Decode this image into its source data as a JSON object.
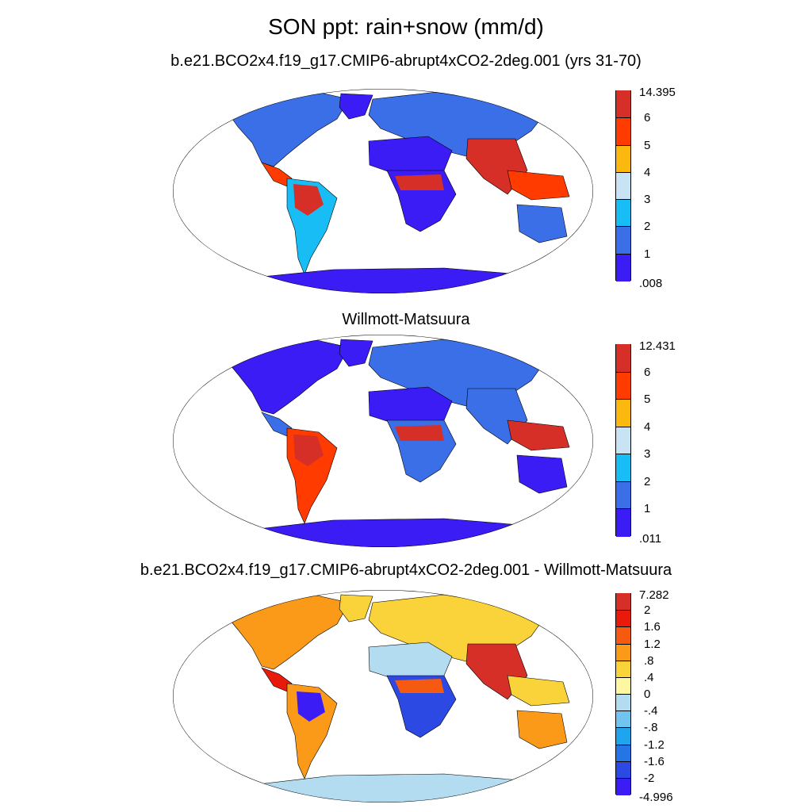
{
  "figure": {
    "title": "SON ppt: rain+snow (mm/d)"
  },
  "panels": [
    {
      "title": "b.e21.BCO2x4.f19_g17.CMIP6-abrupt4xCO2-2deg.001 (yrs 31-70)",
      "colorbar": {
        "labels": [
          "14.395",
          "6",
          "5",
          "4",
          "3",
          "2",
          "1",
          ".008"
        ],
        "colors": [
          "#d62f27",
          "#ff3b00",
          "#fbb90f",
          "#c8e4f4",
          "#18bdf5",
          "#3a6fe8",
          "#3b1cf5"
        ]
      }
    },
    {
      "title": "Willmott-Matsuura",
      "colorbar": {
        "labels": [
          "12.431",
          "6",
          "5",
          "4",
          "3",
          "2",
          "1",
          ".011"
        ],
        "colors": [
          "#d62f27",
          "#ff3b00",
          "#fbb90f",
          "#c8e4f4",
          "#18bdf5",
          "#3a6fe8",
          "#3b1cf5"
        ]
      }
    },
    {
      "title": "b.e21.BCO2x4.f19_g17.CMIP6-abrupt4xCO2-2deg.001 - Willmott-Matsuura",
      "colorbar": {
        "labels": [
          "7.282",
          "2",
          "1.6",
          "1.2",
          ".8",
          ".4",
          "0",
          "-.4",
          "-.8",
          "-1.2",
          "-1.6",
          "-2",
          "-4.996"
        ],
        "colors": [
          "#d62f27",
          "#e81a0c",
          "#f55a10",
          "#fb9a18",
          "#fad23a",
          "#fcf7a0",
          "#b3dcf1",
          "#72c4f0",
          "#1fa4ee",
          "#2575e6",
          "#2c49e4",
          "#3b1cf5"
        ]
      }
    }
  ]
}
